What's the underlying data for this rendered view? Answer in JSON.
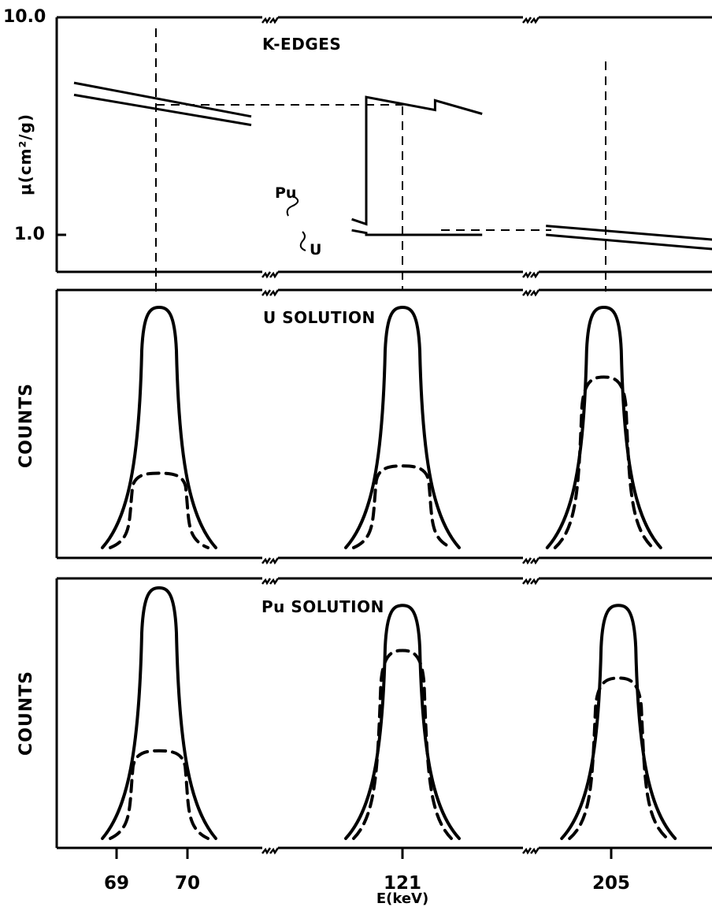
{
  "colors": {
    "ink": "#000000",
    "background": "#ffffff"
  },
  "chart_data": [
    {
      "type": "line",
      "title": "K-EDGES",
      "ylabel": "μ(cm²/g)",
      "yscale": "log",
      "ylim": [
        0.75,
        10.0
      ],
      "yticks": [
        "10.0",
        "1.0"
      ],
      "grid": false,
      "x_segments": [
        "69-70",
        "121",
        "205"
      ],
      "series": [
        {
          "name": "Pu",
          "segments": [
            {
              "x": [
                68.4,
                70.9
              ],
              "y": [
                5.0,
                3.5
              ]
            },
            {
              "x": [
                119.6,
                120.0,
                120.0,
                121.9,
                121.9,
                123.2
              ],
              "y": [
                1.18,
                1.12,
                4.3,
                3.75,
                4.15,
                3.6
              ]
            },
            {
              "x": [
                203.2,
                207.8
              ],
              "y": [
                1.1,
                0.95
              ]
            }
          ]
        },
        {
          "name": "U",
          "segments": [
            {
              "x": [
                68.4,
                70.9
              ],
              "y": [
                4.4,
                3.2
              ]
            },
            {
              "x": [
                119.6,
                120.0,
                120.0,
                121.9,
                121.9,
                123.2
              ],
              "y": [
                1.05,
                1.02,
                1.0,
                1.0,
                1.0,
                1.0
              ]
            },
            {
              "x": [
                203.2,
                207.8
              ],
              "y": [
                1.0,
                0.86
              ]
            }
          ]
        }
      ],
      "annotations": [
        "Pu",
        "U"
      ]
    },
    {
      "type": "line",
      "title": "U SOLUTION",
      "ylabel": "COUNTS",
      "x_segments": [
        "69-70",
        "121",
        "205"
      ],
      "series": [
        {
          "name": "",
          "style": "solid",
          "peaks": [
            {
              "segment": "69-70",
              "center": 69.6,
              "height": 1.0
            },
            {
              "segment": "121",
              "center": 121.0,
              "height": 1.0
            },
            {
              "segment": "205",
              "center": 204.8,
              "height": 1.0
            }
          ]
        },
        {
          "name": "",
          "style": "dashed",
          "peaks": [
            {
              "segment": "69-70",
              "center": 69.6,
              "height": 0.31
            },
            {
              "segment": "121",
              "center": 121.0,
              "height": 0.34
            },
            {
              "segment": "205",
              "center": 204.8,
              "height": 0.71
            }
          ]
        }
      ]
    },
    {
      "type": "line",
      "title": "Pu SOLUTION",
      "ylabel": "COUNTS",
      "x_segments": [
        "69-70",
        "121",
        "205"
      ],
      "series": [
        {
          "name": "",
          "style": "solid",
          "peaks": [
            {
              "segment": "69-70",
              "center": 69.6,
              "height": 1.0
            },
            {
              "segment": "121",
              "center": 121.0,
              "height": 0.93
            },
            {
              "segment": "205",
              "center": 205.2,
              "height": 0.93
            }
          ]
        },
        {
          "name": "",
          "style": "dashed",
          "peaks": [
            {
              "segment": "69-70",
              "center": 69.6,
              "height": 0.35
            },
            {
              "segment": "121",
              "center": 121.0,
              "height": 0.75
            },
            {
              "segment": "205",
              "center": 205.2,
              "height": 0.64
            }
          ]
        }
      ]
    }
  ],
  "axis": {
    "xlabel": "E(keV)",
    "xticks": [
      "69",
      "70",
      "121",
      "205"
    ]
  }
}
